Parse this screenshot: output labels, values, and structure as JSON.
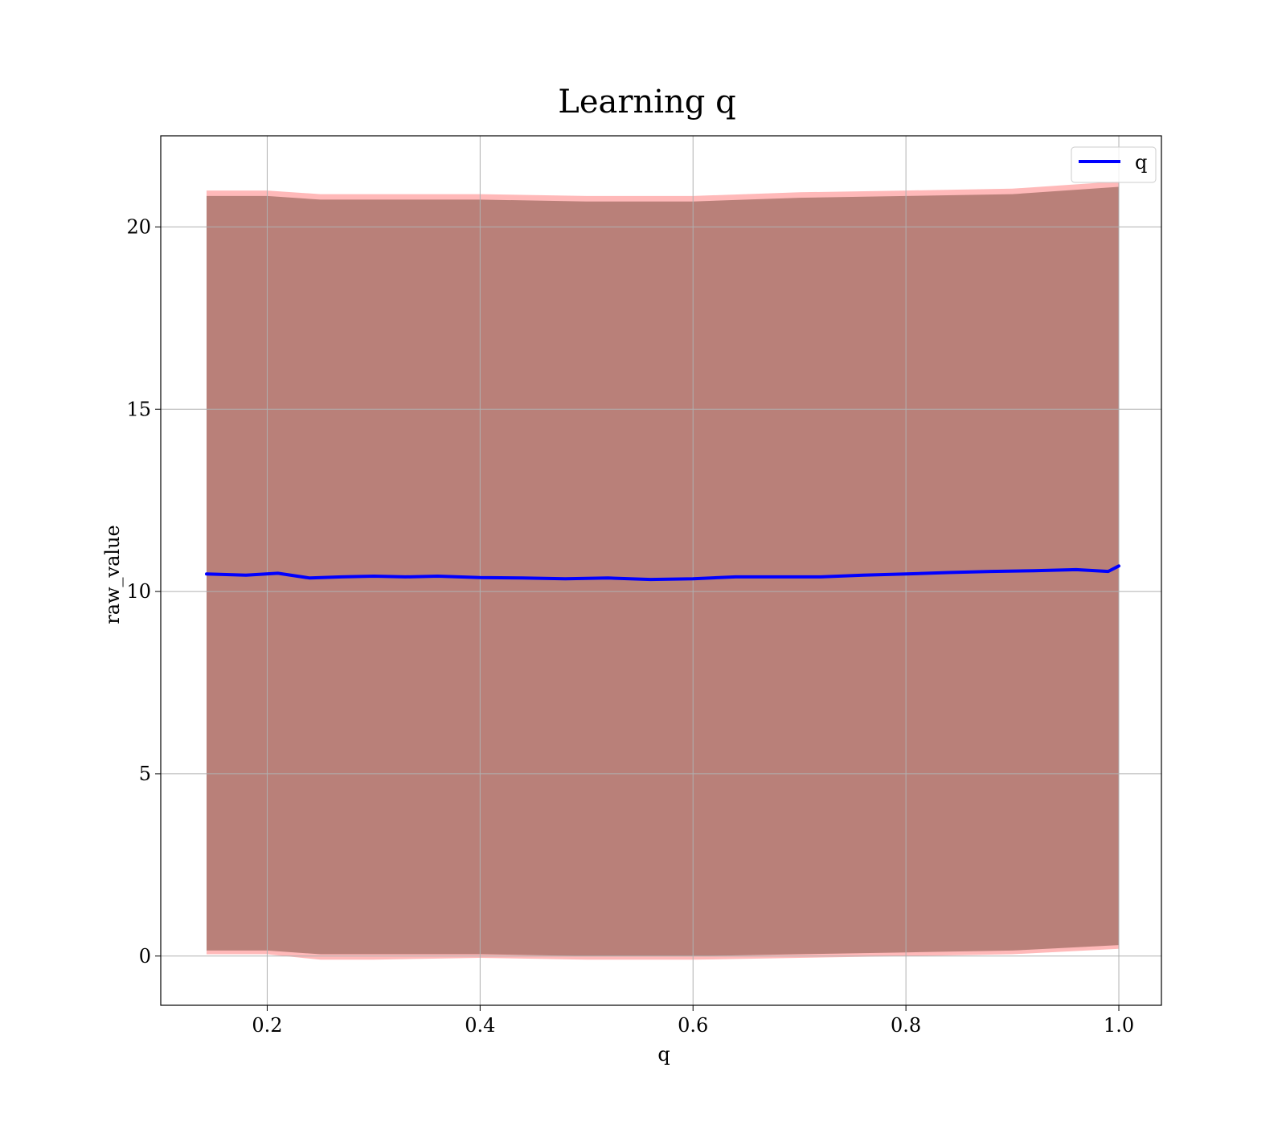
{
  "chart_data": {
    "type": "line",
    "title": "Learning q",
    "xlabel": "q",
    "ylabel": "raw_value",
    "xlim": [
      0.1,
      1.04
    ],
    "ylim": [
      -1.35,
      22.5
    ],
    "xticks": [
      0.2,
      0.4,
      0.6,
      0.8,
      1.0
    ],
    "xtick_labels": [
      "0.2",
      "0.4",
      "0.6",
      "0.8",
      "1.0"
    ],
    "yticks": [
      0,
      5,
      10,
      15,
      20
    ],
    "ytick_labels": [
      "0",
      "5",
      "10",
      "15",
      "20"
    ],
    "grid": true,
    "legend_position": "top-right",
    "series": [
      {
        "name": "q",
        "color": "#0000ff",
        "x": [
          0.143,
          0.18,
          0.21,
          0.24,
          0.27,
          0.3,
          0.33,
          0.36,
          0.4,
          0.44,
          0.48,
          0.52,
          0.56,
          0.6,
          0.64,
          0.68,
          0.72,
          0.76,
          0.8,
          0.84,
          0.88,
          0.92,
          0.96,
          0.99,
          1.0
        ],
        "y": [
          10.48,
          10.45,
          10.5,
          10.37,
          10.4,
          10.42,
          10.4,
          10.42,
          10.38,
          10.37,
          10.35,
          10.37,
          10.33,
          10.35,
          10.4,
          10.4,
          10.4,
          10.45,
          10.48,
          10.52,
          10.55,
          10.57,
          10.6,
          10.55,
          10.7
        ]
      }
    ],
    "bands": [
      {
        "fill": "#ff8a8a",
        "x": [
          0.143,
          0.2,
          0.25,
          0.3,
          0.4,
          0.5,
          0.6,
          0.7,
          0.8,
          0.9,
          1.0
        ],
        "lower": [
          0.05,
          0.05,
          -0.1,
          -0.1,
          -0.05,
          -0.1,
          -0.1,
          -0.05,
          0.0,
          0.05,
          0.2
        ],
        "upper": [
          21.0,
          21.0,
          20.9,
          20.9,
          20.9,
          20.85,
          20.85,
          20.95,
          21.0,
          21.05,
          21.25
        ]
      },
      {
        "fill": "#8b5a4e",
        "x": [
          0.143,
          0.2,
          0.25,
          0.3,
          0.4,
          0.5,
          0.6,
          0.7,
          0.8,
          0.9,
          1.0
        ],
        "lower": [
          0.15,
          0.15,
          0.05,
          0.05,
          0.05,
          0.0,
          0.0,
          0.05,
          0.1,
          0.15,
          0.3
        ],
        "upper": [
          20.85,
          20.85,
          20.75,
          20.75,
          20.75,
          20.7,
          20.7,
          20.8,
          20.85,
          20.9,
          21.1
        ]
      }
    ],
    "band_opacity": 0.6
  }
}
